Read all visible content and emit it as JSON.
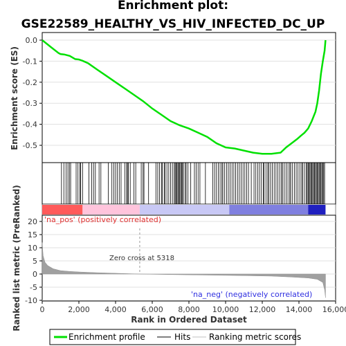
{
  "chart_data": {
    "type": "line",
    "title": "Enrichment plot: GSE22589_HEALTHY_VS_HIV_INFECTED_DC_UP",
    "top_panel": {
      "ylabel": "Enrichment score (ES)",
      "ylim": [
        -0.57,
        0.0
      ],
      "yticks": [
        0.0,
        -0.1,
        -0.2,
        -0.3,
        -0.4,
        -0.5
      ],
      "ytick_labels": [
        "0.0",
        "-0.1",
        "-0.2",
        "-0.3",
        "-0.4",
        "-0.5"
      ],
      "series": [
        {
          "name": "Enrichment profile",
          "color": "#00e000",
          "x": [
            0,
            500,
            900,
            1000,
            1200,
            1500,
            1800,
            2000,
            2200,
            2500,
            3000,
            3500,
            4000,
            4500,
            5000,
            5500,
            6000,
            6500,
            7000,
            7500,
            8000,
            8500,
            9000,
            9500,
            10000,
            10500,
            11000,
            11500,
            12000,
            12500,
            13000,
            13300,
            13600,
            13900,
            14100,
            14300,
            14500,
            14700,
            14900,
            15000,
            15100,
            15200,
            15300,
            15400,
            15450
          ],
          "y": [
            0.0,
            -0.035,
            -0.062,
            -0.066,
            -0.068,
            -0.075,
            -0.09,
            -0.092,
            -0.098,
            -0.11,
            -0.14,
            -0.17,
            -0.2,
            -0.23,
            -0.26,
            -0.29,
            -0.325,
            -0.355,
            -0.385,
            -0.405,
            -0.42,
            -0.44,
            -0.46,
            -0.49,
            -0.51,
            -0.515,
            -0.525,
            -0.535,
            -0.54,
            -0.54,
            -0.535,
            -0.51,
            -0.49,
            -0.47,
            -0.455,
            -0.44,
            -0.42,
            -0.385,
            -0.34,
            -0.3,
            -0.24,
            -0.16,
            -0.1,
            -0.05,
            0.0
          ]
        }
      ]
    },
    "bottom_panel": {
      "ylabel": "Ranked list metric (PreRanked)",
      "xlabel": "Rank in Ordered Dataset",
      "ylim": [
        -10,
        22
      ],
      "yticks": [
        20,
        15,
        10,
        5,
        0,
        -5,
        -10
      ],
      "ytick_labels": [
        "20",
        "15",
        "10",
        "5",
        "0",
        "-5",
        "-10"
      ],
      "xlim": [
        0,
        16000
      ],
      "xticks": [
        0,
        2000,
        4000,
        6000,
        8000,
        10000,
        12000,
        14000,
        16000
      ],
      "xtick_labels": [
        "0",
        "2,000",
        "4,000",
        "6,000",
        "8,000",
        "10,000",
        "12,000",
        "14,000",
        "16,000"
      ],
      "zero_cross": 5318,
      "zero_cross_label": "Zero cross at 5318",
      "pos_label": "'na_pos' (positively correlated)",
      "neg_label": "'na_neg' (negatively correlated)",
      "metric_profile": {
        "x": [
          0,
          50,
          150,
          300,
          600,
          1000,
          1500,
          2000,
          3000,
          4000,
          5318,
          7000,
          9000,
          11000,
          12500,
          13500,
          14500,
          15000,
          15300,
          15400,
          15450
        ],
        "y": [
          12,
          7,
          4.5,
          3.2,
          2.0,
          1.3,
          1.0,
          0.8,
          0.5,
          0.3,
          0.0,
          -0.2,
          -0.4,
          -0.6,
          -0.8,
          -1.1,
          -1.5,
          -2.0,
          -3.2,
          -6,
          -9
        ]
      }
    },
    "hits_x": [
      1050,
      1180,
      1300,
      1400,
      1480,
      1550,
      1850,
      1950,
      2050,
      2100,
      2200,
      2550,
      2700,
      2800,
      2900,
      3100,
      3200,
      3600,
      3800,
      3900,
      4000,
      4100,
      4200,
      4300,
      4500,
      4600,
      4650,
      4700,
      4800,
      5000,
      5100,
      5400,
      5500,
      5550,
      5800,
      6200,
      6300,
      6400,
      6500,
      6550,
      6650,
      6700,
      6800,
      6900,
      7000,
      7100,
      7200,
      7250,
      7300,
      7350,
      7400,
      7450,
      7500,
      7550,
      7600,
      7650,
      7700,
      7800,
      7850,
      7950,
      8100,
      8300,
      8400,
      8500,
      8600,
      8900,
      9300,
      9400,
      9500,
      9600,
      9700,
      9800,
      9850,
      9950,
      10050,
      10150,
      10250,
      10350,
      10450,
      10550,
      10650,
      10750,
      10850,
      10950,
      11050,
      11150,
      11250,
      11400,
      11550,
      11650,
      11750,
      11850,
      11950,
      12050,
      12100,
      12200,
      12300,
      12350,
      12450,
      12550,
      12650,
      12750,
      12850,
      12950,
      13050,
      13100,
      13200,
      13300,
      13400,
      13500,
      13550,
      13650,
      13750,
      13850,
      13950,
      14050,
      14150,
      14200,
      14300,
      14400,
      14450,
      14500,
      14550,
      14600,
      14650,
      14700,
      14750,
      14800,
      14850,
      14900,
      14950,
      15000,
      15050,
      15100,
      15150,
      15200,
      15250,
      15300,
      15350,
      15400
    ],
    "legend": [
      {
        "label": "Enrichment profile",
        "color": "#00e000"
      },
      {
        "label": "Hits",
        "color": "#000000"
      },
      {
        "label": "Ranking metric scores",
        "color": "#c0c0c0"
      }
    ],
    "colors": {
      "profile": "#00e000",
      "metric_fill": "#a0a0a0",
      "pos_strong": "#ff5a5a",
      "pos_light": "#ffc4dc",
      "neg_light": "#c8c8f5",
      "neg_strong": "#2020c0"
    }
  }
}
